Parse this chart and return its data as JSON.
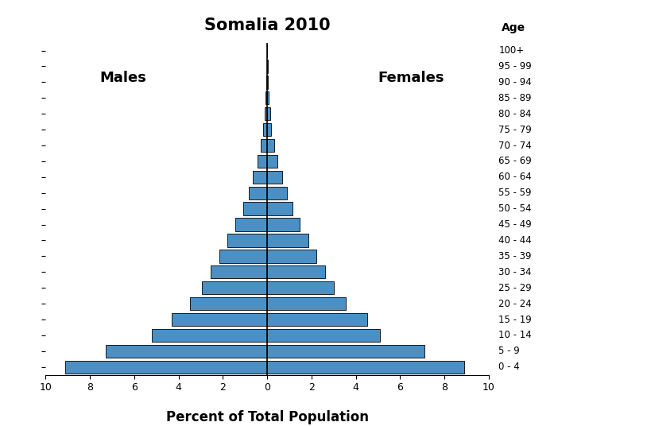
{
  "title": "Somalia 2010",
  "xlabel": "Percent of Total Population",
  "age_groups": [
    "0 - 4",
    "5 - 9",
    "10 - 14",
    "15 - 19",
    "20 - 24",
    "25 - 29",
    "30 - 34",
    "35 - 39",
    "40 - 44",
    "45 - 49",
    "50 - 54",
    "55 - 59",
    "60 - 64",
    "65 - 69",
    "70 - 74",
    "75 - 79",
    "80 - 84",
    "85 - 89",
    "90 - 94",
    "95 - 99",
    "100+"
  ],
  "males": [
    9.1,
    7.3,
    5.2,
    4.3,
    3.5,
    2.95,
    2.55,
    2.15,
    1.8,
    1.45,
    1.1,
    0.85,
    0.65,
    0.42,
    0.28,
    0.17,
    0.1,
    0.07,
    0.04,
    0.02,
    0.01
  ],
  "females": [
    8.9,
    7.1,
    5.1,
    4.5,
    3.55,
    3.0,
    2.6,
    2.2,
    1.85,
    1.48,
    1.15,
    0.88,
    0.68,
    0.45,
    0.3,
    0.19,
    0.12,
    0.08,
    0.04,
    0.02,
    0.01
  ],
  "bar_color": "#4a90c4",
  "bar_edge_color": "#1a1a1a",
  "center_line_color": "#000000",
  "males_label": "Males",
  "females_label": "Females",
  "age_label": "Age",
  "xlim": 10,
  "title_fontsize": 15,
  "axis_label_fontsize": 12,
  "tick_fontsize": 9,
  "age_tick_fontsize": 8.5
}
